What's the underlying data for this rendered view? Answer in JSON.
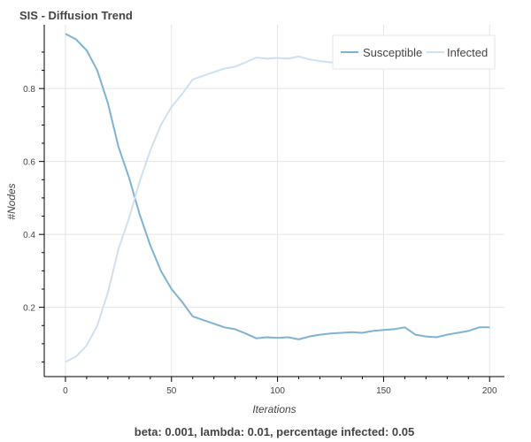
{
  "chart_data": {
    "type": "line",
    "title": "SIS - Diffusion Trend",
    "xlabel": "Iterations",
    "ylabel": "#Nodes",
    "caption": "beta: 0.001, lambda: 0.01, percentage infected: 0.05",
    "xlim": [
      -10,
      207
    ],
    "ylim": [
      0.01,
      0.975
    ],
    "x_ticks": [
      0,
      50,
      100,
      150,
      200
    ],
    "y_ticks": [
      0.2,
      0.4,
      0.6,
      0.8
    ],
    "grid": true,
    "legend_position": "top-right",
    "series": [
      {
        "name": "Susceptible",
        "color": "#7fb2d4",
        "x": [
          0,
          5,
          10,
          15,
          20,
          25,
          30,
          35,
          40,
          45,
          50,
          55,
          60,
          65,
          70,
          75,
          80,
          85,
          90,
          95,
          100,
          105,
          110,
          115,
          120,
          125,
          130,
          135,
          140,
          145,
          150,
          155,
          160,
          165,
          170,
          175,
          180,
          185,
          190,
          195,
          200
        ],
        "values": [
          0.95,
          0.935,
          0.905,
          0.85,
          0.76,
          0.64,
          0.555,
          0.455,
          0.37,
          0.3,
          0.25,
          0.215,
          0.175,
          0.165,
          0.155,
          0.145,
          0.14,
          0.128,
          0.115,
          0.118,
          0.116,
          0.118,
          0.112,
          0.12,
          0.125,
          0.128,
          0.13,
          0.132,
          0.13,
          0.135,
          0.138,
          0.14,
          0.145,
          0.125,
          0.12,
          0.118,
          0.125,
          0.13,
          0.135,
          0.145,
          0.145
        ]
      },
      {
        "name": "Infected",
        "color": "#cfe0f0",
        "x": [
          0,
          5,
          10,
          15,
          20,
          25,
          30,
          35,
          40,
          45,
          50,
          55,
          60,
          65,
          70,
          75,
          80,
          85,
          90,
          95,
          100,
          105,
          110,
          115,
          120,
          125,
          130,
          135,
          140,
          145,
          150,
          155,
          160,
          165,
          170,
          175,
          180,
          185,
          190,
          195,
          200
        ],
        "values": [
          0.05,
          0.065,
          0.095,
          0.15,
          0.24,
          0.36,
          0.445,
          0.545,
          0.63,
          0.7,
          0.75,
          0.785,
          0.825,
          0.835,
          0.845,
          0.855,
          0.86,
          0.872,
          0.885,
          0.882,
          0.884,
          0.882,
          0.888,
          0.88,
          0.875,
          0.872,
          0.87,
          0.868,
          0.87,
          0.865,
          0.862,
          0.86,
          0.855,
          0.875,
          0.88,
          0.882,
          0.875,
          0.87,
          0.865,
          0.855,
          0.855
        ]
      }
    ]
  }
}
